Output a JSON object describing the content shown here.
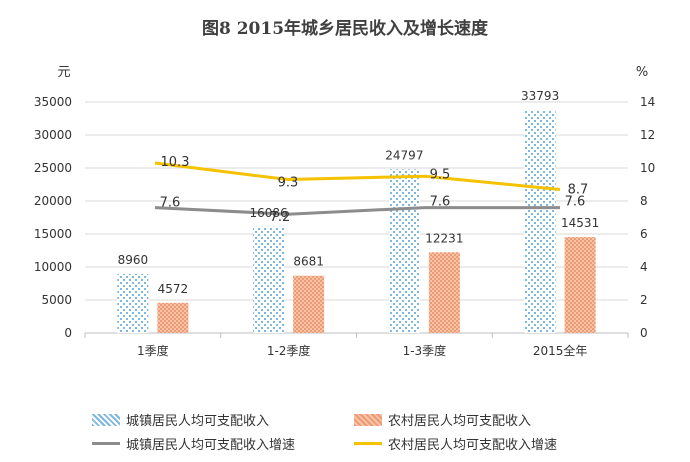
{
  "title": "图8 2015年城乡居民收入及增长速度",
  "colors": {
    "urban_bar": "#8ec3e6",
    "rural_bar": "#f2a37f",
    "urban_growth": "#8c8c8c",
    "rural_growth": "#f5c200"
  },
  "chart_data": {
    "type": "bar",
    "title": "图8 2015年城乡居民收入及增长速度",
    "categories": [
      "1季度",
      "1-2季度",
      "1-3季度",
      "2015全年"
    ],
    "y_left": {
      "unit": "元",
      "lim": [
        0,
        35000
      ],
      "ticks": [
        "0",
        "5000",
        "10000",
        "15000",
        "20000",
        "25000",
        "30000",
        "35000"
      ]
    },
    "y_right": {
      "unit": "%",
      "lim": [
        0,
        14
      ],
      "ticks": [
        "0",
        "2",
        "4",
        "6",
        "8",
        "10",
        "12",
        "14"
      ]
    },
    "series": [
      {
        "name": "城镇居民人均可支配收入",
        "kind": "bar",
        "axis": "left",
        "values": [
          8960,
          16086,
          24797,
          33793
        ],
        "labels": [
          "8960",
          "16086",
          "24797",
          "33793"
        ]
      },
      {
        "name": "农村居民人均可支配收入",
        "kind": "bar",
        "axis": "left",
        "values": [
          4572,
          8681,
          12231,
          14531
        ],
        "labels": [
          "4572",
          "8681",
          "12231",
          "14531"
        ]
      },
      {
        "name": "城镇居民人均可支配收入增速",
        "kind": "line",
        "axis": "right",
        "values": [
          7.6,
          7.2,
          7.6,
          7.6
        ],
        "labels": [
          "7.6",
          "7.2",
          "7.6",
          "7.6"
        ]
      },
      {
        "name": "农村居民人均可支配收入增速",
        "kind": "line",
        "axis": "right",
        "values": [
          10.3,
          9.3,
          9.5,
          8.7
        ],
        "labels": [
          "10.3",
          "9.3",
          "9.5",
          "8.7"
        ]
      }
    ],
    "grid": true,
    "legend": "bottom"
  }
}
